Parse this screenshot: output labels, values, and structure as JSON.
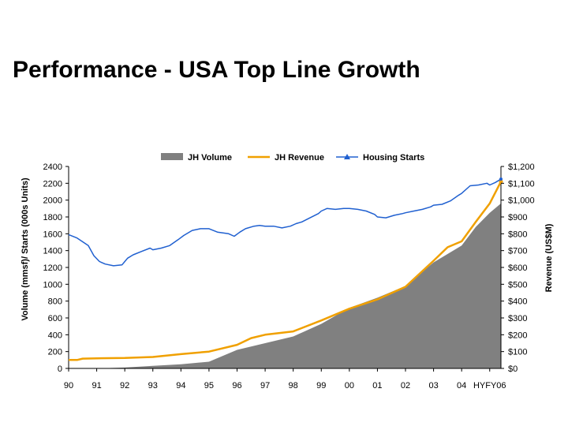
{
  "title": "Performance - USA Top Line Growth",
  "chart_data": {
    "type": "area+line",
    "title": "Performance - USA Top Line Growth",
    "xlabel": "",
    "ylabel_left": "Volume (mmsf)/ Starts (000s Units)",
    "ylabel_right": "Revenue (US$M)",
    "x_ticks": [
      "90",
      "91",
      "92",
      "93",
      "94",
      "95",
      "96",
      "97",
      "98",
      "99",
      "00",
      "01",
      "02",
      "03",
      "04",
      "HYFY06"
    ],
    "y_left_ticks": [
      "0",
      "200",
      "400",
      "600",
      "800",
      "1000",
      "1200",
      "1400",
      "1600",
      "1800",
      "2000",
      "2200",
      "2400"
    ],
    "y_right_ticks": [
      "$0",
      "$100",
      "$200",
      "$300",
      "$400",
      "$500",
      "$600",
      "$700",
      "$800",
      "$900",
      "$1,000",
      "$1,100",
      "$1,200"
    ],
    "ylim_left": [
      0,
      2400
    ],
    "ylim_right": [
      0,
      1200
    ],
    "xlim": [
      0,
      15.4
    ],
    "legend_position": "top",
    "colors": {
      "volume": "#808080",
      "revenue": "#f0a000",
      "starts": "#2060d0"
    },
    "series": [
      {
        "name": "JH Volume",
        "kind": "area",
        "axis": "left",
        "x": [
          0,
          1,
          2,
          3,
          4,
          5,
          6,
          7,
          8,
          9,
          10,
          11,
          12,
          13,
          14,
          14.5,
          15,
          15.4
        ],
        "values": [
          0,
          0,
          10,
          30,
          50,
          80,
          220,
          300,
          380,
          530,
          720,
          840,
          980,
          1260,
          1460,
          1680,
          1850,
          1960
        ]
      },
      {
        "name": "JH Revenue",
        "kind": "line",
        "axis": "right",
        "x": [
          0,
          0.3,
          0.5,
          1,
          2,
          3,
          4,
          5,
          6,
          6.5,
          7,
          8,
          9,
          10,
          11,
          12,
          13,
          13.5,
          14,
          14.5,
          15,
          15.4
        ],
        "values": [
          50,
          50,
          58,
          60,
          62,
          68,
          85,
          100,
          140,
          180,
          200,
          220,
          285,
          355,
          410,
          485,
          640,
          720,
          755,
          870,
          980,
          1110
        ]
      },
      {
        "name": "Housing Starts",
        "kind": "line",
        "axis": "left",
        "x": [
          0,
          0.3,
          0.7,
          0.9,
          1.1,
          1.3,
          1.6,
          1.9,
          2.0,
          2.1,
          2.3,
          2.6,
          2.9,
          3.0,
          3.3,
          3.6,
          3.9,
          4.1,
          4.4,
          4.7,
          5.0,
          5.3,
          5.7,
          5.9,
          6.1,
          6.3,
          6.6,
          6.8,
          7.0,
          7.3,
          7.6,
          7.9,
          8.1,
          8.3,
          8.6,
          8.9,
          9.0,
          9.2,
          9.5,
          9.8,
          10.0,
          10.3,
          10.6,
          10.9,
          11.0,
          11.3,
          11.6,
          11.9,
          12.0,
          12.3,
          12.6,
          12.9,
          13.0,
          13.3,
          13.6,
          13.9,
          14.0,
          14.3,
          14.6,
          14.9,
          15.0,
          15.2,
          15.4
        ],
        "values": [
          1590,
          1550,
          1460,
          1340,
          1270,
          1240,
          1220,
          1230,
          1270,
          1310,
          1350,
          1390,
          1430,
          1410,
          1430,
          1460,
          1530,
          1580,
          1640,
          1660,
          1660,
          1620,
          1600,
          1570,
          1620,
          1660,
          1690,
          1700,
          1690,
          1690,
          1670,
          1690,
          1720,
          1740,
          1790,
          1840,
          1870,
          1900,
          1890,
          1900,
          1900,
          1890,
          1870,
          1830,
          1800,
          1790,
          1820,
          1840,
          1850,
          1870,
          1890,
          1920,
          1940,
          1950,
          1990,
          2060,
          2080,
          2170,
          2180,
          2200,
          2180,
          2210,
          2250
        ]
      }
    ]
  }
}
